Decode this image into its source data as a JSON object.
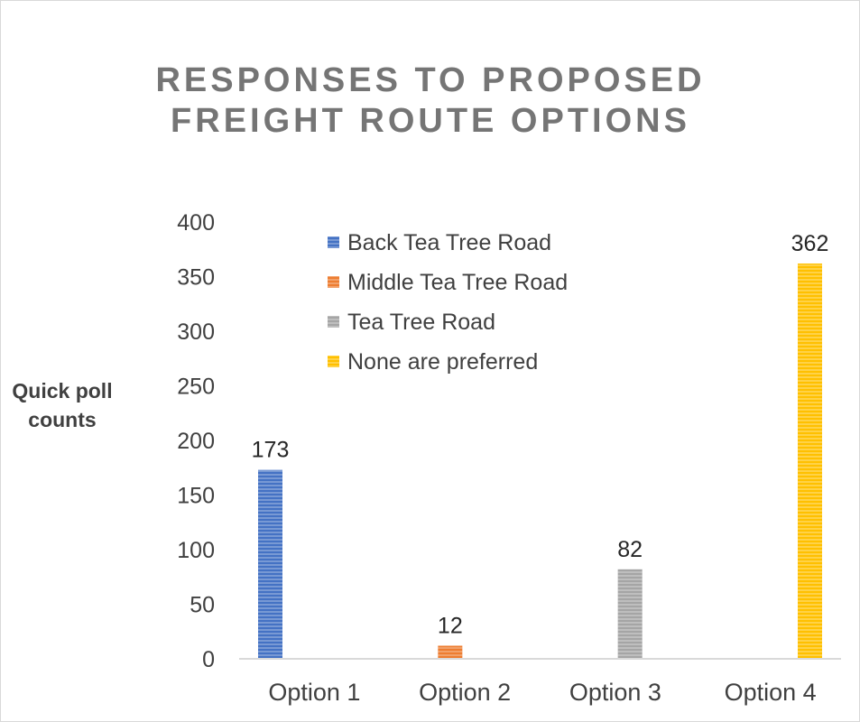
{
  "chart_data": {
    "type": "bar",
    "title_lines": [
      "RESPONSES TO PROPOSED",
      "FREIGHT ROUTE OPTIONS"
    ],
    "ylabel_lines": [
      "Quick poll",
      "counts"
    ],
    "xlabel": "",
    "ylim": [
      0,
      400
    ],
    "yticks": [
      0,
      50,
      100,
      150,
      200,
      250,
      300,
      350,
      400
    ],
    "categories": [
      "Option 1",
      "Option 2",
      "Option 3",
      "Option 4"
    ],
    "series": [
      {
        "name": "Back Tea Tree Road",
        "color": "#4472C4",
        "values": [
          173,
          null,
          null,
          null
        ]
      },
      {
        "name": "Middle Tea Tree Road",
        "color": "#ED7D31",
        "values": [
          null,
          12,
          null,
          null
        ]
      },
      {
        "name": "Tea Tree Road",
        "color": "#A5A5A5",
        "values": [
          null,
          null,
          82,
          null
        ]
      },
      {
        "name": "None are preferred",
        "color": "#FFC000",
        "values": [
          null,
          null,
          null,
          362
        ]
      }
    ],
    "data_labels": true,
    "grid": false,
    "legend_position": "inside top"
  }
}
